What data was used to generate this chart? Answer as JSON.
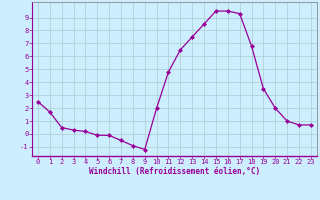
{
  "x": [
    0,
    1,
    2,
    3,
    4,
    5,
    6,
    7,
    8,
    9,
    10,
    11,
    12,
    13,
    14,
    15,
    16,
    17,
    18,
    19,
    20,
    21,
    22,
    23
  ],
  "y": [
    2.5,
    1.7,
    0.5,
    0.3,
    0.2,
    -0.1,
    -0.1,
    -0.5,
    -0.9,
    -1.2,
    2.0,
    4.8,
    6.5,
    7.5,
    8.5,
    9.5,
    9.5,
    9.3,
    6.8,
    3.5,
    2.0,
    1.0,
    0.7,
    0.7
  ],
  "line_color": "#990099",
  "marker": "D",
  "marker_size": 2.0,
  "bg_color": "#cceeff",
  "grid_color": "#aacccc",
  "xlabel": "Windchill (Refroidissement éolien,°C)",
  "xlim": [
    -0.5,
    23.5
  ],
  "ylim": [
    -1.7,
    10.2
  ],
  "yticks": [
    -1,
    0,
    1,
    2,
    3,
    4,
    5,
    6,
    7,
    8,
    9
  ],
  "xticks": [
    0,
    1,
    2,
    3,
    4,
    5,
    6,
    7,
    8,
    9,
    10,
    11,
    12,
    13,
    14,
    15,
    16,
    17,
    18,
    19,
    20,
    21,
    22,
    23
  ],
  "tick_color": "#990099",
  "label_color": "#990099",
  "axis_line_color": "#990099",
  "spine_color": "#888888"
}
